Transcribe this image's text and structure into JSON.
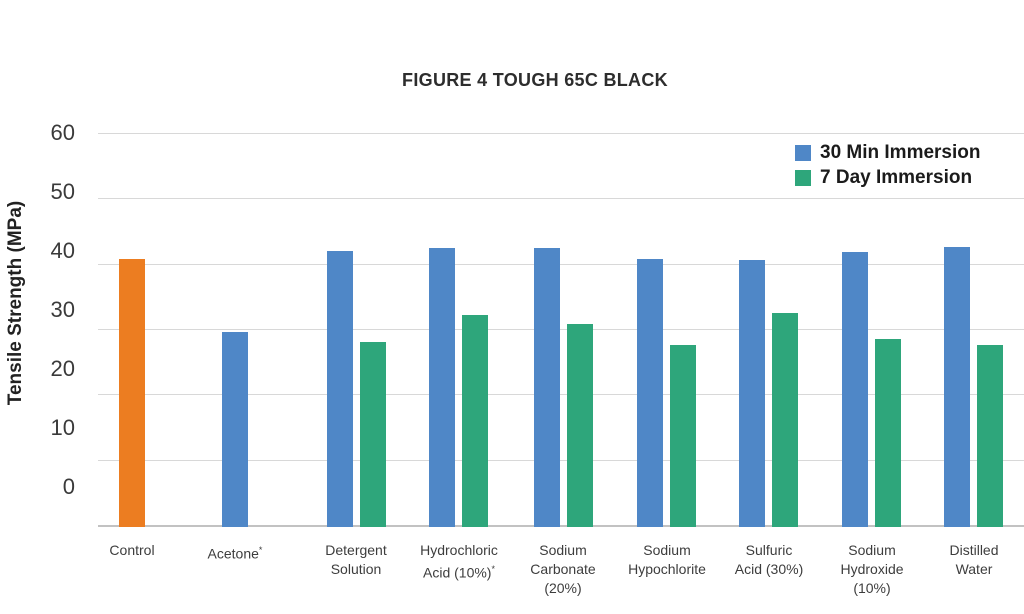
{
  "page": {
    "background": "#ffffff"
  },
  "chart_data": {
    "type": "bar",
    "title": "FIGURE 4 TOUGH 65C BLACK",
    "ylabel": "Tensile Strength (MPa)",
    "xlabel": "",
    "ylim": [
      0,
      60
    ],
    "yticks": [
      0,
      10,
      20,
      30,
      40,
      50,
      60
    ],
    "grid": true,
    "legend_position": "top-right",
    "grid_color": "#D8D8D8",
    "axis_color": "#C2C2C2",
    "text_color": "#3a3a3a",
    "categories": [
      {
        "key": "control",
        "label": "Control",
        "lines": [
          "Control"
        ]
      },
      {
        "key": "acetone",
        "label": "Acetone*",
        "lines": [
          "Acetone*"
        ]
      },
      {
        "key": "detergent-solution",
        "label": "Detergent Solution",
        "lines": [
          "Detergent",
          "Solution"
        ]
      },
      {
        "key": "hydrochloric-acid-10",
        "label": "Hydrochloric Acid (10%)*",
        "lines": [
          "Hydrochloric",
          "Acid (10%)*"
        ]
      },
      {
        "key": "sodium-carbonate-20",
        "label": "Sodium Carbonate (20%)",
        "lines": [
          "Sodium",
          "Carbonate",
          "(20%)"
        ]
      },
      {
        "key": "sodium-hypochlorite",
        "label": "Sodium Hypochlorite",
        "lines": [
          "Sodium",
          "Hypochlorite"
        ]
      },
      {
        "key": "sulfuric-acid-30",
        "label": "Sulfuric Acid (30%)",
        "lines": [
          "Sulfuric",
          "Acid (30%)"
        ]
      },
      {
        "key": "sodium-hydroxide-10",
        "label": "Sodium Hydroxide (10%)",
        "lines": [
          "Sodium",
          "Hydroxide",
          "(10%)"
        ]
      },
      {
        "key": "distilled-water",
        "label": "Distilled Water",
        "lines": [
          "Distilled",
          "Water"
        ]
      }
    ],
    "series": [
      {
        "name": "30 Min Immersion",
        "color": "#4F87C7",
        "values": [
          40.7,
          29.5,
          42.0,
          42.4,
          42.4,
          40.7,
          40.6,
          41.8,
          42.6
        ]
      },
      {
        "name": "7 Day Immersion",
        "color": "#2EA67B",
        "values": [
          null,
          null,
          28.0,
          32.2,
          30.8,
          27.6,
          32.4,
          28.4,
          27.6
        ]
      }
    ],
    "highlight": {
      "category": "control",
      "series": "30 Min Immersion",
      "color": "#EC7D21"
    }
  }
}
